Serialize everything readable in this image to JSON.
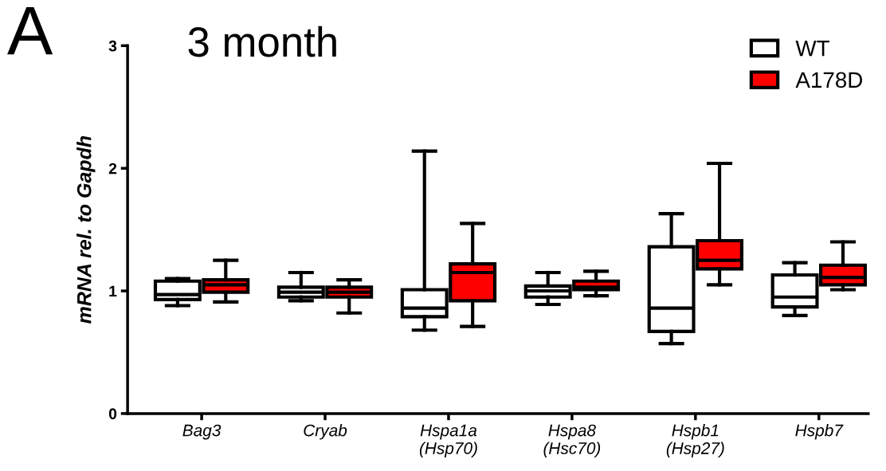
{
  "chart_data": {
    "type": "box",
    "title": "3 month",
    "ylabel": "mRNA rel. to Gapdh",
    "annotations": [
      "A"
    ],
    "categories": [
      "Bag3",
      "Cryab",
      "Hspa1a\n(Hsp70)",
      "Hspa8\n(Hsc70)",
      "Hspb1\n(Hsp27)",
      "Hspb7"
    ],
    "ylim": [
      0,
      3
    ],
    "yticks": [
      0,
      1,
      2,
      3
    ],
    "grid": false,
    "legend": "top right",
    "series": [
      {
        "name": "WT",
        "color": "#ffffff",
        "boxes": [
          {
            "low": 0.88,
            "q1": 0.93,
            "median": 0.97,
            "q3": 1.08,
            "high": 1.1
          },
          {
            "low": 0.92,
            "q1": 0.95,
            "median": 0.99,
            "q3": 1.03,
            "high": 1.15
          },
          {
            "low": 0.68,
            "q1": 0.79,
            "median": 0.86,
            "q3": 1.01,
            "high": 2.14
          },
          {
            "low": 0.89,
            "q1": 0.95,
            "median": 1.0,
            "q3": 1.04,
            "high": 1.15
          },
          {
            "low": 0.57,
            "q1": 0.67,
            "median": 0.86,
            "q3": 1.36,
            "high": 1.63
          },
          {
            "low": 0.8,
            "q1": 0.87,
            "median": 0.95,
            "q3": 1.13,
            "high": 1.23
          }
        ]
      },
      {
        "name": "A178D",
        "color": "#ff0000",
        "boxes": [
          {
            "low": 0.91,
            "q1": 0.99,
            "median": 1.05,
            "q3": 1.09,
            "high": 1.25
          },
          {
            "low": 0.82,
            "q1": 0.95,
            "median": 0.99,
            "q3": 1.03,
            "high": 1.09
          },
          {
            "low": 0.71,
            "q1": 0.92,
            "median": 1.15,
            "q3": 1.22,
            "high": 1.55
          },
          {
            "low": 0.96,
            "q1": 1.01,
            "median": 1.03,
            "q3": 1.08,
            "high": 1.16
          },
          {
            "low": 1.05,
            "q1": 1.18,
            "median": 1.25,
            "q3": 1.41,
            "high": 2.04
          },
          {
            "low": 1.01,
            "q1": 1.05,
            "median": 1.11,
            "q3": 1.21,
            "high": 1.4
          }
        ]
      }
    ]
  }
}
